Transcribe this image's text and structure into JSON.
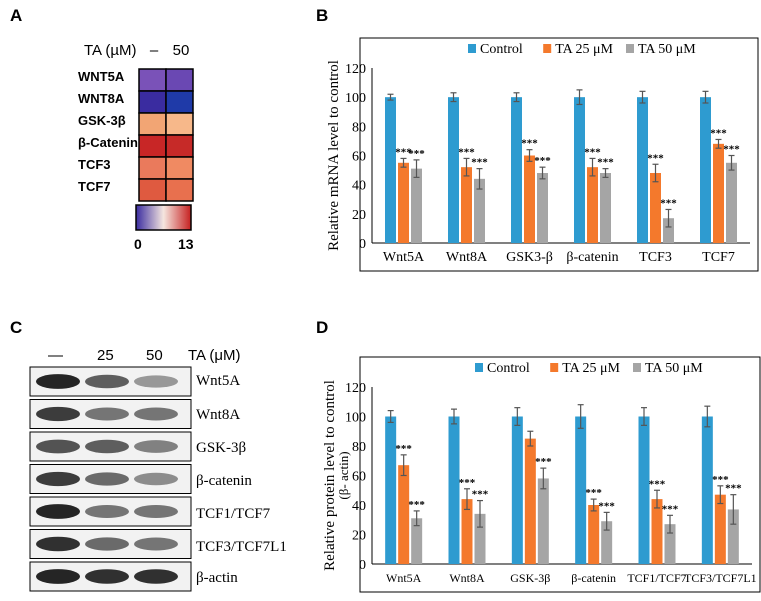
{
  "panels": {
    "a": "A",
    "b": "B",
    "c": "C",
    "d": "D"
  },
  "heatmap": {
    "header_label": "TA (µM)",
    "columns": [
      "–",
      "50"
    ],
    "rows": [
      "WNT5A",
      "WNT8A",
      "GSK-3β",
      "β-Catenin",
      "TCF3",
      "TCF7"
    ],
    "colors": [
      [
        "#7a52b8",
        "#6a48b3"
      ],
      [
        "#3a2ca0",
        "#1f3aa8"
      ],
      [
        "#f2a574",
        "#f7b88a"
      ],
      [
        "#c82626",
        "#c62a28"
      ],
      [
        "#ea7a5c",
        "#f08a62"
      ],
      [
        "#df5a40",
        "#e8704e"
      ]
    ],
    "scale_min": "0",
    "scale_max": "13",
    "scale_colors": [
      "#3a2ca0",
      "#f5e6df",
      "#c62020"
    ]
  },
  "blot": {
    "lanes": [
      "—",
      "25",
      "50"
    ],
    "treatment_label": "TA (μM)",
    "proteins": [
      "Wnt5A",
      "Wnt8A",
      "GSK-3β",
      "β-catenin",
      "TCF1/TCF7",
      "TCF3/TCF7L1",
      "β-actin"
    ]
  },
  "chart_data": [
    {
      "type": "bar",
      "panel": "B",
      "title": "",
      "xlabel": "",
      "ylabel": "Relative mRNA level to control",
      "ylim": [
        0,
        120
      ],
      "yticks": [
        0,
        20,
        40,
        60,
        80,
        100,
        120
      ],
      "categories": [
        "Wnt5A",
        "Wnt8A",
        "GSK3-β",
        "β-catenin",
        "TCF3",
        "TCF7"
      ],
      "series": [
        {
          "name": "Control",
          "color": "#2e9bd0",
          "values": [
            100,
            100,
            100,
            100,
            100,
            100
          ],
          "errors": [
            2,
            3,
            3,
            5,
            4,
            4
          ]
        },
        {
          "name": "TA 25 μM",
          "color": "#f4792c",
          "values": [
            55,
            52,
            60,
            52,
            48,
            68
          ],
          "errors": [
            3,
            6,
            4,
            6,
            6,
            3
          ]
        },
        {
          "name": "TA 50 μM",
          "color": "#a5a5a5",
          "values": [
            51,
            44,
            48,
            48,
            17,
            55
          ],
          "errors": [
            6,
            7,
            4,
            3,
            6,
            5
          ]
        }
      ],
      "annotations": [
        [
          "",
          "***",
          "***"
        ],
        [
          "",
          "***",
          "***"
        ],
        [
          "",
          "***",
          "***"
        ],
        [
          "",
          "***",
          "***"
        ],
        [
          "",
          "***",
          "***"
        ],
        [
          "",
          "***",
          "***"
        ]
      ]
    },
    {
      "type": "bar",
      "panel": "D",
      "title": "",
      "xlabel": "",
      "ylabel": "Relative protein level to control (β- actin)",
      "ylim": [
        0,
        120
      ],
      "yticks": [
        0,
        20,
        40,
        60,
        80,
        100,
        120
      ],
      "categories": [
        "Wnt5A",
        "Wnt8A",
        "GSK-3β",
        "β-catenin",
        "TCF1/TCF7",
        "TCF3/TCF7L1"
      ],
      "series": [
        {
          "name": "Control",
          "color": "#2e9bd0",
          "values": [
            100,
            100,
            100,
            100,
            100,
            100
          ],
          "errors": [
            4,
            5,
            6,
            8,
            6,
            7
          ]
        },
        {
          "name": "TA 25 μM",
          "color": "#f4792c",
          "values": [
            67,
            44,
            85,
            40,
            44,
            47
          ],
          "errors": [
            7,
            7,
            5,
            4,
            6,
            6
          ]
        },
        {
          "name": "TA 50 μM",
          "color": "#a5a5a5",
          "values": [
            31,
            34,
            58,
            29,
            27,
            37
          ],
          "errors": [
            5,
            9,
            7,
            6,
            6,
            10
          ]
        }
      ],
      "annotations": [
        [
          "",
          "***",
          "***"
        ],
        [
          "",
          "***",
          "***"
        ],
        [
          "",
          "",
          "***"
        ],
        [
          "",
          "***",
          "***"
        ],
        [
          "",
          "***",
          "***"
        ],
        [
          "",
          "***",
          "***"
        ]
      ]
    }
  ]
}
